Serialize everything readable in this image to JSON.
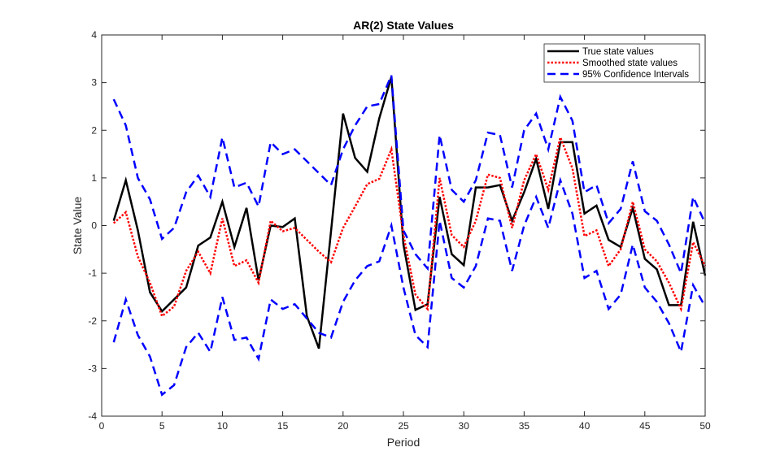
{
  "chart_data": {
    "type": "line",
    "title": "AR(2) State Values",
    "xlabel": "Period",
    "ylabel": "State Value",
    "xlim": [
      0,
      50
    ],
    "ylim": [
      -4,
      4
    ],
    "xticks": [
      0,
      5,
      10,
      15,
      20,
      25,
      30,
      35,
      40,
      45,
      50
    ],
    "yticks": [
      -4,
      -3,
      -2,
      -1,
      0,
      1,
      2,
      3,
      4
    ],
    "grid": false,
    "legend_position": "top-right",
    "x": [
      1,
      2,
      3,
      4,
      5,
      6,
      7,
      8,
      9,
      10,
      11,
      12,
      13,
      14,
      15,
      16,
      17,
      18,
      19,
      20,
      21,
      22,
      23,
      24,
      25,
      26,
      27,
      28,
      29,
      30,
      31,
      32,
      33,
      34,
      35,
      36,
      37,
      38,
      39,
      40,
      41,
      42,
      43,
      44,
      45,
      46,
      47,
      48,
      49,
      50
    ],
    "series": [
      {
        "name": "True state values",
        "color": "#000000",
        "style": "solid",
        "values": [
          0.1,
          0.95,
          -0.1,
          -1.4,
          -1.8,
          -1.55,
          -1.3,
          -0.42,
          -0.25,
          0.5,
          -0.45,
          0.37,
          -1.15,
          0.0,
          -0.03,
          0.15,
          -1.9,
          -2.58,
          -0.12,
          2.35,
          1.42,
          1.13,
          2.25,
          3.12,
          -0.4,
          -1.77,
          -1.65,
          0.6,
          -0.6,
          -0.83,
          0.8,
          0.8,
          0.85,
          0.1,
          0.7,
          1.4,
          0.35,
          1.75,
          1.75,
          0.25,
          0.42,
          -0.3,
          -0.45,
          0.37,
          -0.7,
          -0.92,
          -1.67,
          -1.67,
          0.08,
          -1.05
        ]
      },
      {
        "name": "Smoothed state values",
        "color": "#ff0000",
        "style": "dotted",
        "values": [
          0.05,
          0.28,
          -0.65,
          -1.2,
          -1.9,
          -1.7,
          -0.95,
          -0.55,
          -1.0,
          0.15,
          -0.85,
          -0.73,
          -1.2,
          0.1,
          -0.12,
          -0.05,
          -0.3,
          -0.55,
          -0.77,
          -0.05,
          0.4,
          0.87,
          0.98,
          1.6,
          -0.2,
          -1.45,
          -1.75,
          1.0,
          -0.2,
          -0.45,
          0.1,
          1.07,
          1.0,
          -0.05,
          0.95,
          1.5,
          0.75,
          1.85,
          1.2,
          -0.22,
          -0.1,
          -0.85,
          -0.5,
          0.5,
          -0.5,
          -0.75,
          -1.2,
          -1.75,
          -0.35,
          -0.85
        ]
      },
      {
        "name": "95% Confidence Intervals",
        "color": "#0000ff",
        "style": "dashed",
        "values": [
          2.65,
          2.1,
          1.0,
          0.55,
          -0.28,
          -0.05,
          0.7,
          1.05,
          0.6,
          1.85,
          0.8,
          0.9,
          0.4,
          1.75,
          1.5,
          1.6,
          1.35,
          1.1,
          0.85,
          1.6,
          2.1,
          2.5,
          2.55,
          3.15,
          -0.1,
          -0.6,
          -0.9,
          1.9,
          0.75,
          0.5,
          0.95,
          1.95,
          1.9,
          0.8,
          2.0,
          2.35,
          1.6,
          2.7,
          2.2,
          0.7,
          0.85,
          0.05,
          0.35,
          1.35,
          0.3,
          0.1,
          -0.4,
          -1.0,
          0.6,
          0.05
        ]
      },
      {
        "name": "95% Confidence Intervals (lower)",
        "color": "#0000ff",
        "style": "dashed",
        "in_legend": false,
        "values": [
          -2.45,
          -1.55,
          -2.3,
          -2.75,
          -3.55,
          -3.35,
          -2.55,
          -2.25,
          -2.65,
          -1.5,
          -2.4,
          -2.35,
          -2.8,
          -1.55,
          -1.75,
          -1.65,
          -1.95,
          -2.25,
          -2.35,
          -1.6,
          -1.15,
          -0.85,
          -0.75,
          0.0,
          -1.3,
          -2.3,
          -2.55,
          0.1,
          -1.1,
          -1.3,
          -0.85,
          0.15,
          0.1,
          -0.95,
          0.0,
          0.6,
          -0.05,
          0.95,
          0.25,
          -1.1,
          -0.95,
          -1.75,
          -1.45,
          -0.4,
          -1.3,
          -1.6,
          -2.05,
          -2.65,
          -1.25,
          -1.7
        ]
      }
    ]
  }
}
